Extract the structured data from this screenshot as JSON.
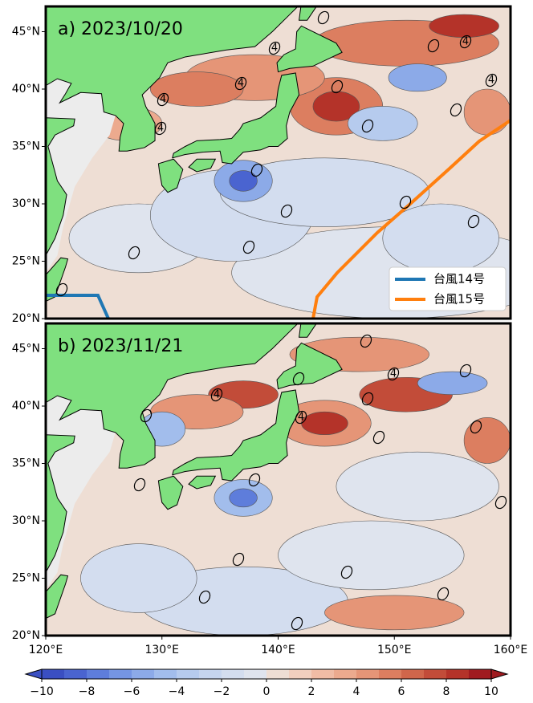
{
  "panels": [
    {
      "label": "a) 2023/10/20",
      "legend": [
        {
          "name": "台風14号",
          "color": "#1f77b4"
        },
        {
          "name": "台風15号",
          "color": "#ff7f0e"
        }
      ],
      "contour_labels": [
        "4",
        "4",
        "4",
        "4",
        "4",
        "4",
        "0",
        "0",
        "0",
        "0",
        "0",
        "0",
        "0",
        "0",
        "0",
        "0",
        "0",
        "0"
      ]
    },
    {
      "label": "b) 2023/11/21",
      "contour_labels": [
        "4",
        "4",
        "4",
        "0",
        "0",
        "0",
        "0",
        "0",
        "0",
        "0",
        "0",
        "0",
        "0",
        "0",
        "0",
        "0",
        "0",
        "0"
      ]
    }
  ],
  "lat_ticks": [
    {
      "value": 20,
      "label": "20°N"
    },
    {
      "value": 25,
      "label": "25°N"
    },
    {
      "value": 30,
      "label": "30°N"
    },
    {
      "value": 35,
      "label": "35°N"
    },
    {
      "value": 40,
      "label": "40°N"
    },
    {
      "value": 45,
      "label": "45°N"
    }
  ],
  "lon_ticks": [
    {
      "value": 120,
      "label": "120°E"
    },
    {
      "value": 130,
      "label": "130°E"
    },
    {
      "value": 140,
      "label": "140°E"
    },
    {
      "value": 150,
      "label": "150°E"
    },
    {
      "value": 160,
      "label": "160°E"
    }
  ],
  "colorbar": {
    "range": [
      -10,
      10
    ],
    "ticks": [
      {
        "value": -10,
        "label": "−10"
      },
      {
        "value": -8,
        "label": "−8"
      },
      {
        "value": -6,
        "label": "−6"
      },
      {
        "value": -4,
        "label": "−4"
      },
      {
        "value": -2,
        "label": "−2"
      },
      0,
      2,
      4,
      6,
      8,
      10
    ],
    "colors": [
      "#3a4fc2",
      "#4a64d0",
      "#5e7ddb",
      "#7595e3",
      "#8caae8",
      "#a2bdec",
      "#b6cbee",
      "#c6d5ef",
      "#d3ddef",
      "#dfe4ee",
      "#eeded4",
      "#f1cfbe",
      "#f0bca5",
      "#ecaa8e",
      "#e59577",
      "#dc7e60",
      "#d0664b",
      "#c24c39",
      "#b43329",
      "#a01a1f"
    ]
  }
}
